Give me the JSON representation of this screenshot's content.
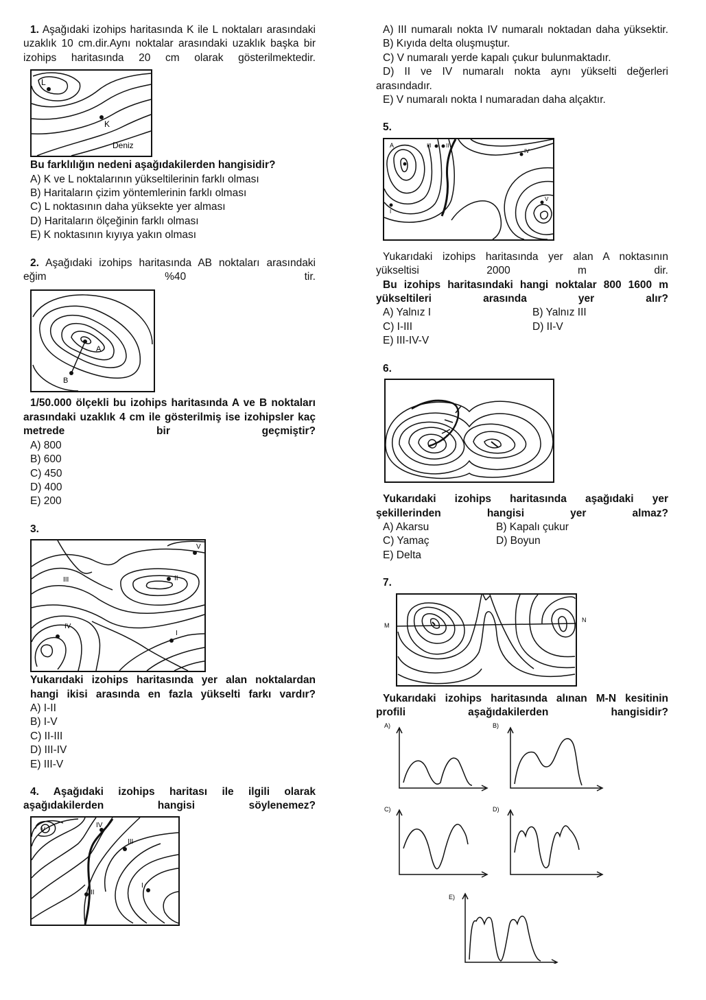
{
  "q1": {
    "num": "1.",
    "stem": "Aşağıdaki izohips haritasında K ile L noktaları arasındaki uzaklık 10 cm.dir.Aynı noktalar arasındaki uzaklık başka bir izohips haritasında 20 cm olarak gösterilmektedir.",
    "map_labels": {
      "L": "L",
      "K": "K",
      "sea": "Deniz"
    },
    "question": "Bu farklılığın nedeni aşağıdakilerden hangisidir?",
    "options": [
      "A) K ve L noktalarının yükseltilerinin farklı olması",
      "B) Haritaların çizim yöntemlerinin farklı olması",
      "C) L noktasının daha yüksekte yer alması",
      "D) Haritaların ölçeğinin farklı olması",
      "E) K noktasının kıyıya yakın olması"
    ]
  },
  "q2": {
    "num": "2.",
    "stem": "Aşağıdaki izohips haritasında AB noktaları arasındaki eğim %40 tir.",
    "map_labels": {
      "A": "A",
      "B": "B"
    },
    "question": "1/50.000 ölçekli bu izohips haritasında A ve B noktaları arasındaki uzaklık 4 cm ile gösterilmiş ise izohipsler kaç metrede bir geçmiştir?",
    "options": [
      "A) 800",
      "B) 600",
      "C) 450",
      "D) 400",
      "E) 200"
    ]
  },
  "q3": {
    "num": "3.",
    "map_labels": {
      "I": "I",
      "II": "II",
      "III": "III",
      "IV": "IV",
      "V": "V"
    },
    "question": "Yukarıdaki izohips haritasında yer alan noktalardan hangi ikisi arasında en fazla yükselti farkı vardır?",
    "options": [
      "A) I-II",
      "B) I-V",
      "C) II-III",
      "D) III-IV",
      "E) III-V"
    ]
  },
  "q4": {
    "num": "4.",
    "question": "Aşağıdaki izohips haritası ile ilgili olarak aşağıdakilerden hangisi söylenemez?",
    "map_labels": {
      "I": "I",
      "II": "II",
      "III": "III",
      "IV": "IV",
      "V": "V"
    },
    "options": [
      "A) III numaralı nokta IV numaralı noktadan daha yüksektir.",
      "B) Kıyıda delta oluşmuştur.",
      "C) V numaralı yerde kapalı çukur bulunmaktadır.",
      "D) II ve IV numaralı nokta aynı yükselti değerleri arasındadır.",
      "E) V numaralı nokta I numaradan daha alçaktır."
    ]
  },
  "q5": {
    "num": "5.",
    "map_labels": {
      "A": "A",
      "I": "I",
      "III": "III",
      "II": "II",
      "IV": "IV",
      "V": "V"
    },
    "stem": "Yukarıdaki izohips haritasında yer alan A noktasının yükseltisi 2000 m dir.",
    "question": "Bu izohips haritasındaki hangi noktalar 800 1600 m yükseltileri arasında yer alır?",
    "options": [
      "A) Yalnız I",
      "B) Yalnız III",
      "C) I-III",
      "D) II-V",
      "E) III-IV-V"
    ]
  },
  "q6": {
    "num": "6.",
    "question": "Yukarıdaki izohips haritasında aşağıdaki yer şekillerinden hangisi yer almaz?",
    "options": [
      "A) Akarsu",
      "B) Kapalı çukur",
      "C) Yamaç",
      "D) Boyun",
      "E) Delta"
    ]
  },
  "q7": {
    "num": "7.",
    "map_labels": {
      "M": "M",
      "N": "N"
    },
    "question": "Yukarıdaki izohips haritasında alınan M-N kesitinin profili aşağıdakilerden hangisidir?",
    "option_letters": [
      "A)",
      "B)",
      "C)",
      "D)",
      "E)"
    ]
  }
}
